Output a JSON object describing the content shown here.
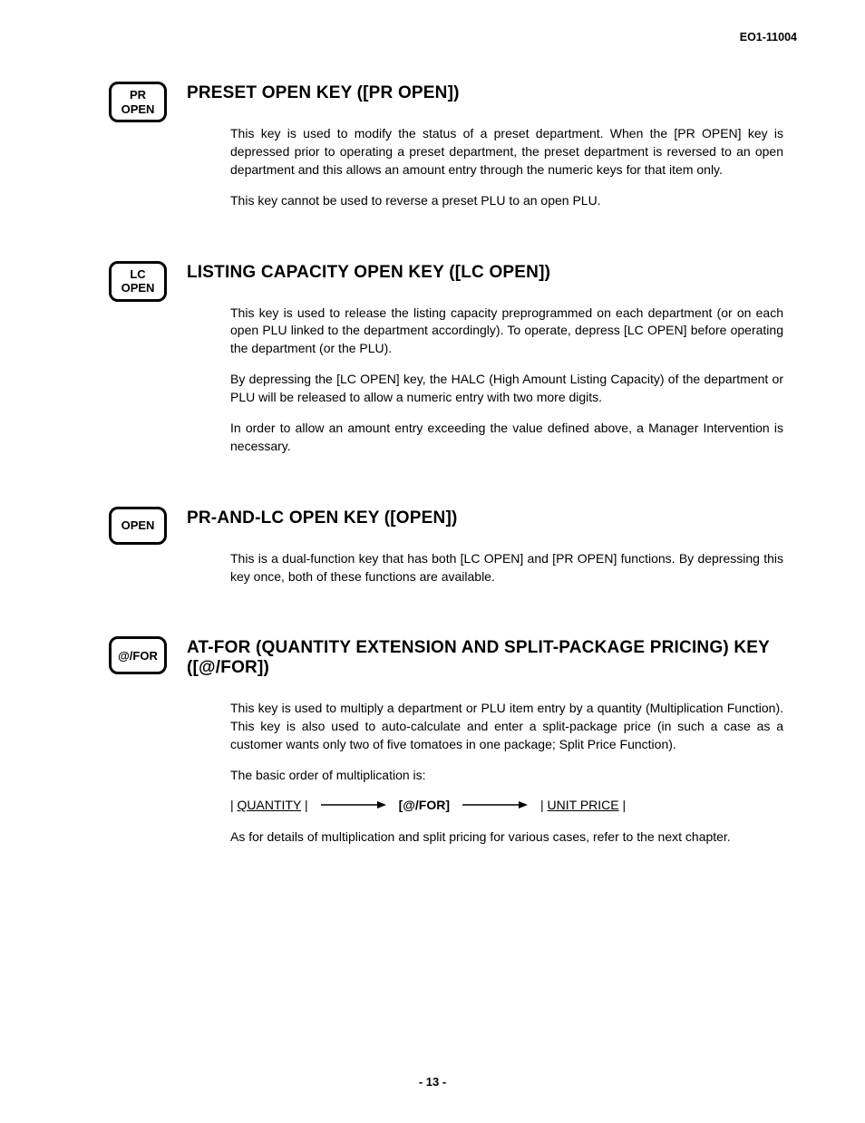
{
  "doc_id": "EO1-11004",
  "page_number": "- 13 -",
  "colors": {
    "text": "#000000",
    "background": "#ffffff",
    "keybox_border": "#000000"
  },
  "typography": {
    "title_fontsize_pt": 15,
    "body_fontsize_pt": 11,
    "keybox_fontsize_pt": 10,
    "font_family": "Arial"
  },
  "sections": [
    {
      "key_label": "PR\nOPEN",
      "title": "PRESET OPEN KEY ([PR OPEN])",
      "paras": [
        {
          "text": "This key is used to modify the status of a preset department.   When the [PR OPEN] key is depressed prior to operating a preset department, the preset department is reversed to an open department and this allows an amount entry through the numeric keys for that item only."
        },
        {
          "text": "This key cannot be used to reverse a preset PLU to an open PLU."
        }
      ]
    },
    {
      "key_label": "LC\nOPEN",
      "title": "LISTING CAPACITY OPEN KEY ([LC OPEN])",
      "paras": [
        {
          "text": "This key is used to release the listing capacity preprogrammed on each department (or on each open PLU linked to the department accordingly).   To operate, depress [LC OPEN] before operating the department (or the PLU)."
        },
        {
          "text": "By depressing the [LC OPEN] key, the HALC (High Amount Listing Capacity) of the department or PLU will be released to allow a numeric entry with two more digits."
        },
        {
          "text": "In order to allow an amount entry exceeding the value defined above, a Manager Intervention is necessary."
        }
      ]
    },
    {
      "key_label": "OPEN",
      "title": "PR-AND-LC OPEN KEY ([OPEN])",
      "paras": [
        {
          "text": "This is a dual-function key that has both [LC OPEN] and [PR OPEN] functions.   By depressing this key once, both of these functions are available."
        }
      ]
    },
    {
      "key_label": "@/FOR",
      "title": "AT-FOR (QUANTITY EXTENSION AND SPLIT-PACKAGE PRICING) KEY ([@/FOR])",
      "paras": [
        {
          "text": "This key is used to multiply a department or PLU item entry by a quantity (Multiplication Function).   This key is also used to auto-calculate and enter a split-package price (in such a case as a customer wants only two of five tomatoes in one package; Split Price Function)."
        },
        {
          "text": "The basic order of multiplication is:"
        }
      ],
      "flow": {
        "a": "QUANTITY",
        "mid": "[@/FOR]",
        "b": "UNIT PRICE"
      },
      "post_paras": [
        {
          "text": "As for details of multiplication and split pricing for various cases, refer to the next chapter."
        }
      ]
    }
  ]
}
